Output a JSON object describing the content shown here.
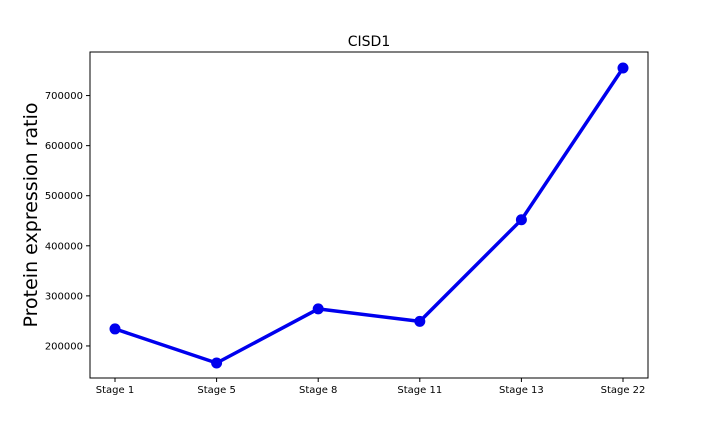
{
  "chart_data": {
    "type": "line",
    "title": "CISD1",
    "xlabel": "",
    "ylabel": "Protein expression ratio",
    "categories": [
      "Stage 1",
      "Stage 5",
      "Stage 8",
      "Stage 11",
      "Stage 13",
      "Stage 22"
    ],
    "series": [
      {
        "values": [
          234000,
          166000,
          274000,
          249000,
          452000,
          755000
        ],
        "color": "#0000ee"
      }
    ],
    "yticks": [
      200000,
      300000,
      400000,
      500000,
      600000,
      700000
    ],
    "ylim": [
      136000,
      787000
    ],
    "grid": false,
    "legend": "none"
  }
}
